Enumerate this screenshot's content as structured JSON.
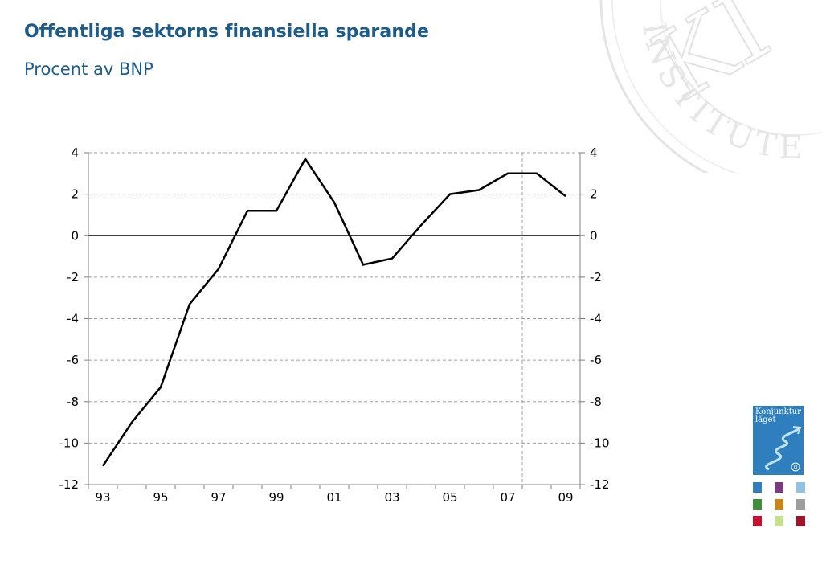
{
  "header": {
    "title": "Offentliga sektorns finansiella sparande",
    "subtitle": "Procent av BNP"
  },
  "branding": {
    "seal_text": "INSTITUTET",
    "seal_monogram": "KI",
    "cover_title": "Konjunktur läget",
    "cover_badge": "KI",
    "cover_color": "#2f7fbf",
    "thumbnail_colors": [
      "#2f7fbf",
      "#7a3b7e",
      "#8fc3e6",
      "#3f8f3a",
      "#c8861a",
      "#9e9e9e",
      "#c8102e",
      "#c5e08f",
      "#a3122b"
    ]
  },
  "chart_data": {
    "type": "line",
    "title": "Offentliga sektorns finansiella sparande",
    "subtitle": "Procent av BNP",
    "xlabel": "",
    "ylabel": "",
    "x": [
      1993,
      1994,
      1995,
      1996,
      1997,
      1998,
      1999,
      2000,
      2001,
      2002,
      2003,
      2004,
      2005,
      2006,
      2007,
      2008,
      2009
    ],
    "series": [
      {
        "values": [
          -11.1,
          -9.0,
          -7.3,
          -3.3,
          -1.6,
          1.2,
          1.2,
          3.7,
          1.6,
          -1.4,
          -1.1,
          0.5,
          2.0,
          2.2,
          3.0,
          3.0,
          1.9
        ],
        "color": "#000000"
      }
    ],
    "x_tick_labels": [
      "93",
      "95",
      "97",
      "99",
      "01",
      "03",
      "05",
      "07",
      "09"
    ],
    "y_tick_labels": [
      "4",
      "2",
      "0",
      "-2",
      "-4",
      "-6",
      "-8",
      "-10",
      "-12"
    ],
    "ylim": [
      -12,
      4
    ],
    "y_step": 2,
    "grid": true,
    "dual_y_axis": true,
    "forecast_start": 2008,
    "colors": {
      "line": "#000000",
      "grid": "#a0a0a0",
      "axis": "#7f7f7f",
      "zero_line": "#000000"
    }
  }
}
